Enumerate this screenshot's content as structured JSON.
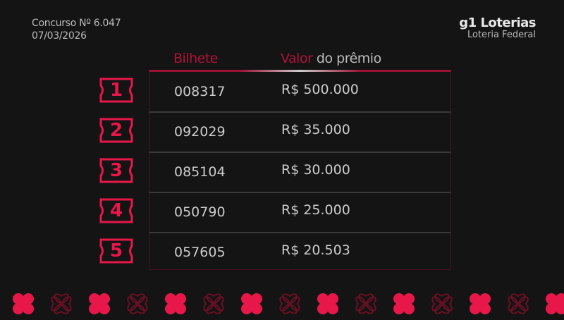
{
  "contest": {
    "number": "Concurso Nº 6.047",
    "date": "07/03/2026"
  },
  "brand": {
    "title": "g1 Loterias",
    "subtitle": "Loteria Federal"
  },
  "headers": {
    "ticket": "Bilhete",
    "prize_accent": "Valor",
    "prize_rest": " do prêmio"
  },
  "rows": [
    {
      "rank": "1",
      "ticket": "008317",
      "prize": "R$ 500.000"
    },
    {
      "rank": "2",
      "ticket": "092029",
      "prize": "R$ 35.000"
    },
    {
      "rank": "3",
      "ticket": "085104",
      "prize": "R$ 30.000"
    },
    {
      "rank": "4",
      "ticket": "050790",
      "prize": "R$ 25.000"
    },
    {
      "rank": "5",
      "ticket": "057605",
      "prize": "R$ 20.503"
    }
  ],
  "colors": {
    "accent": "#e8174a",
    "dark_accent": "#b0123a",
    "background": "#141414"
  },
  "icons": {
    "badge": "ticket-badge-icon",
    "decor": "clover-icon"
  }
}
